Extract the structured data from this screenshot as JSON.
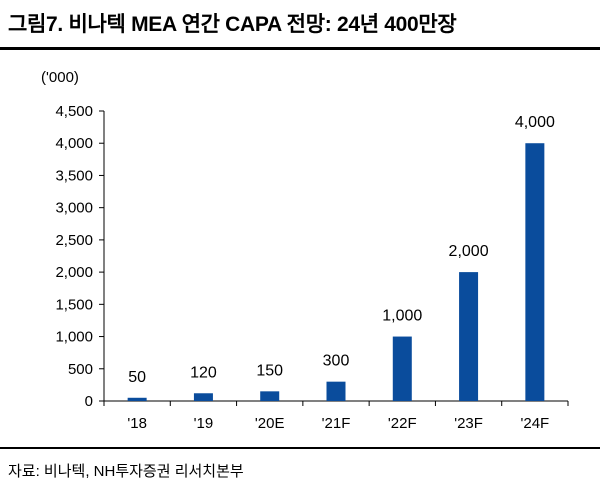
{
  "title": "그림7. 비나텍 MEA 연간 CAPA 전망: 24년 400만장",
  "source": "자료: 비나텍, NH투자증권 리서치본부",
  "colors": {
    "bar": "#0a4c9c",
    "axis": "#000000",
    "text": "#000000"
  },
  "chart_data": {
    "type": "bar",
    "title": "비나텍 MEA 연간 CAPA 전망: 24년 400만장",
    "unit_label": "('000)",
    "xlabel": "",
    "ylabel": "('000)",
    "categories": [
      "'18",
      "'19",
      "'20E",
      "'21F",
      "'22F",
      "'23F",
      "'24F"
    ],
    "values": [
      50,
      120,
      150,
      300,
      1000,
      2000,
      4000
    ],
    "value_labels": [
      "50",
      "120",
      "150",
      "300",
      "1,000",
      "2,000",
      "4,000"
    ],
    "ylim": [
      0,
      4500
    ],
    "yticks": [
      0,
      500,
      1000,
      1500,
      2000,
      2500,
      3000,
      3500,
      4000,
      4500
    ],
    "ytick_labels": [
      "0",
      "500",
      "1,000",
      "1,500",
      "2,000",
      "2,500",
      "3,000",
      "3,500",
      "4,000",
      "4,500"
    ],
    "grid": false,
    "legend": "none"
  }
}
